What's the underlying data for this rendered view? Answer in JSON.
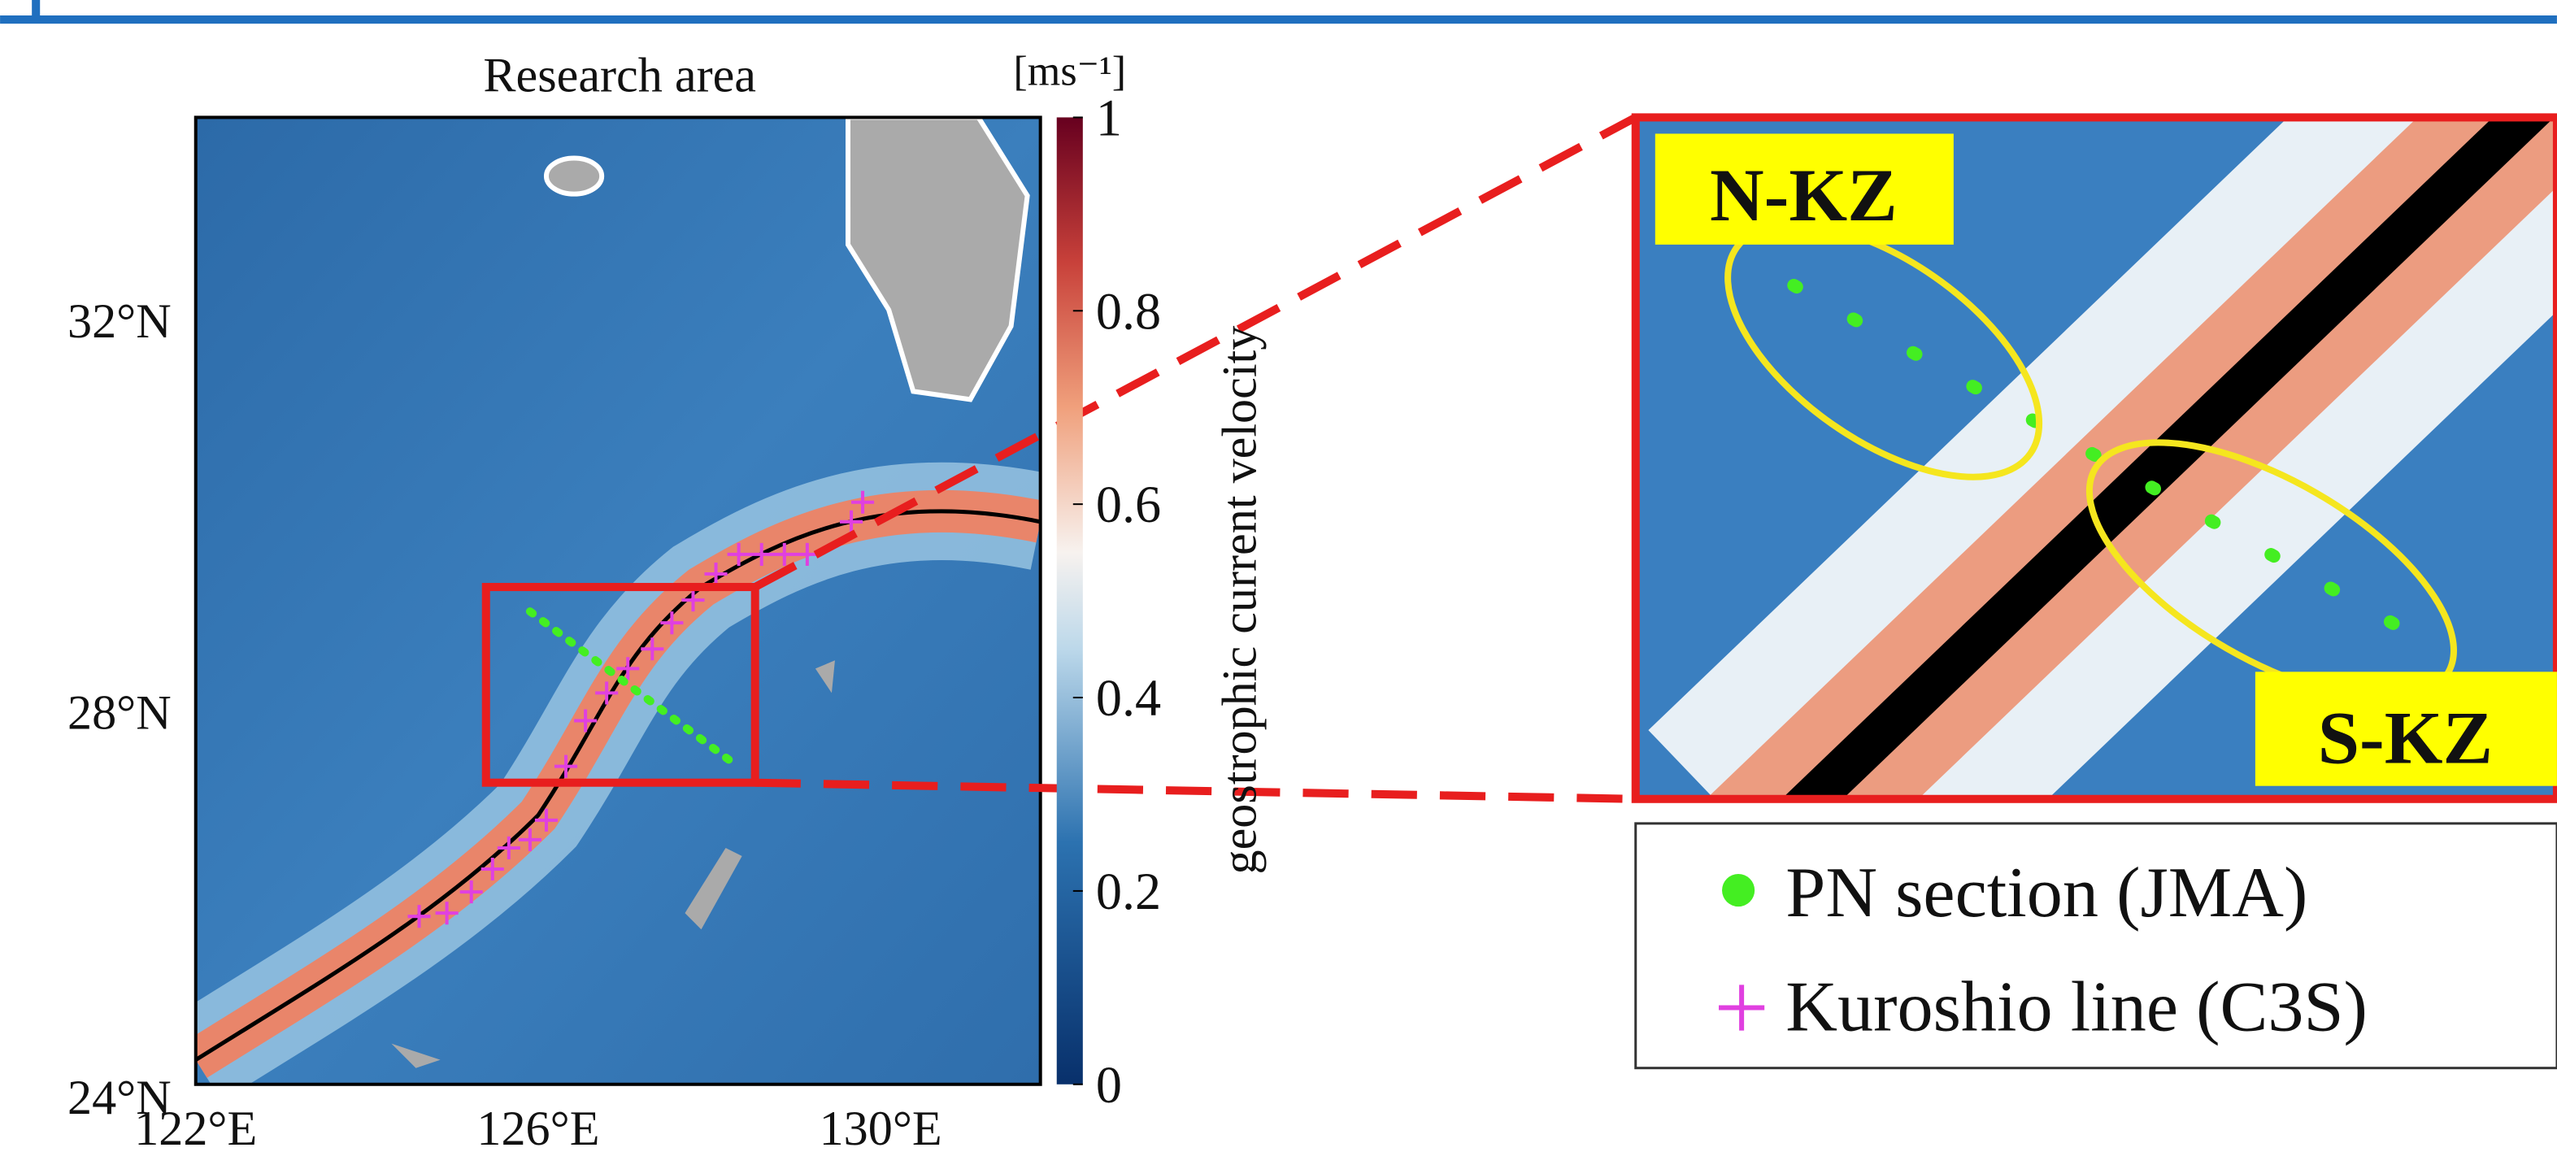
{
  "map": {
    "title": "Research area",
    "lat_labels": [
      "32°N",
      "28°N",
      "24°N"
    ],
    "lon_labels": [
      "122°E",
      "126°E",
      "130°E"
    ],
    "colorbar": {
      "unit": "[ms⁻¹]",
      "label": "geostrophic current velocity",
      "lim": [
        0,
        1
      ],
      "ticks": [
        0,
        0.2,
        0.4,
        0.6,
        0.8,
        1
      ]
    }
  },
  "zoom": {
    "north_label": "N-KZ",
    "south_label": "S-KZ"
  },
  "legend": {
    "items": [
      "PN section (JMA)",
      "Kuroshio line (C3S)"
    ]
  }
}
